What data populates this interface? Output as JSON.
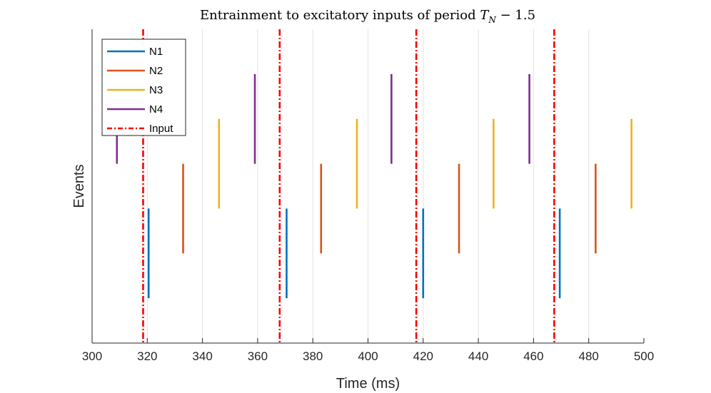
{
  "chart_data": {
    "type": "event-raster",
    "title_prefix": "Entrainment to excitatory inputs of period ",
    "title_var": "T",
    "title_sub": "N",
    "title_suffix": " − 1.5",
    "xlabel": "Time (ms)",
    "ylabel": "Events",
    "xlim": [
      300,
      500
    ],
    "ylim": [
      0,
      7
    ],
    "xticks": [
      300,
      320,
      340,
      360,
      380,
      400,
      420,
      440,
      460,
      480,
      500
    ],
    "grid": "x",
    "legend_position": "top-left",
    "series": [
      {
        "name": "N1",
        "color": "#0072BD",
        "y_range": [
          1,
          3
        ],
        "events": [
          320.5,
          370.5,
          420.0,
          469.5
        ]
      },
      {
        "name": "N2",
        "color": "#D95319",
        "y_range": [
          2,
          4
        ],
        "events": [
          333.0,
          383.0,
          433.0,
          482.5
        ]
      },
      {
        "name": "N3",
        "color": "#EDB120",
        "y_range": [
          3,
          5
        ],
        "events": [
          346.0,
          396.0,
          445.5,
          495.5
        ]
      },
      {
        "name": "N4",
        "color": "#7E2F8E",
        "y_range": [
          4,
          6
        ],
        "events": [
          309.0,
          359.0,
          408.5,
          458.5
        ]
      }
    ],
    "input": {
      "name": "Input",
      "color": "#FF0000",
      "style": "dash-dot",
      "times": [
        318.5,
        368.0,
        417.5,
        467.5
      ]
    }
  }
}
